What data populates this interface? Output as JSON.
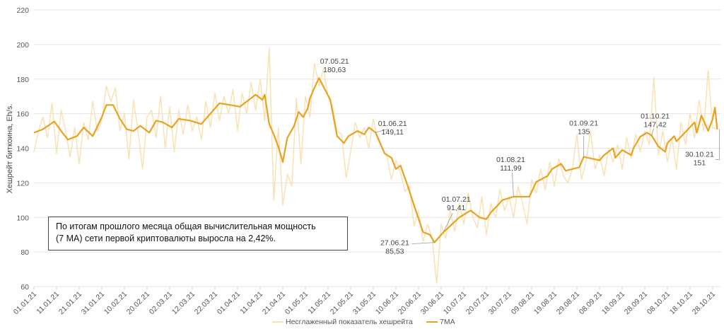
{
  "chart_data": {
    "type": "line",
    "ylabel": "Хешрейт биткоина, Eh/s.",
    "xlabel": "",
    "ylim": [
      60,
      220
    ],
    "yticks": [
      60,
      80,
      100,
      120,
      140,
      160,
      180,
      200,
      220
    ],
    "grid": true,
    "legend_position": "bottom",
    "x_start": "01.01.21",
    "xtick_labels": [
      "01.01.21",
      "11.01.21",
      "21.01.21",
      "31.01.21",
      "10.02.21",
      "20.02.21",
      "02.03.21",
      "12.03.21",
      "22.03.21",
      "01.04.21",
      "11.04.21",
      "21.04.21",
      "01.05.21",
      "11.05.21",
      "21.05.21",
      "31.05.21",
      "10.06.21",
      "20.06.21",
      "30.06.21",
      "10.07.21",
      "20.07.21",
      "30.07.21",
      "09.08.21",
      "19.08.21",
      "29.08.21",
      "08.09.21",
      "18.09.21",
      "28.09.21",
      "08.10.21",
      "18.10.21",
      "28.10.21"
    ],
    "series": [
      {
        "name": "Несглаженный показатель хешрейта",
        "color": "#f8e1b4",
        "day_step": 2,
        "values": [
          138,
          150,
          158,
          146,
          166,
          137,
          162,
          150,
          135,
          152,
          131,
          155,
          145,
          167,
          150,
          156,
          176,
          167,
          175,
          150,
          160,
          134,
          168,
          150,
          128,
          158,
          162,
          146,
          170,
          140,
          164,
          138,
          162,
          148,
          165,
          150,
          158,
          145,
          167,
          152,
          172,
          156,
          170,
          160,
          174,
          150,
          172,
          160,
          178,
          162,
          180,
          156,
          198,
          110,
          152,
          107,
          125,
          118,
          169,
          131,
          170,
          158,
          189,
          176,
          186,
          170,
          164,
          150,
          148,
          123,
          138,
          155,
          146,
          152,
          140,
          157,
          145,
          140,
          135,
          122,
          133,
          126,
          115,
          118,
          95,
          104,
          86,
          96,
          88,
          62,
          96,
          88,
          104,
          92,
          108,
          96,
          114,
          100,
          94,
          112,
          90,
          108,
          100,
          116,
          104,
          112,
          100,
          118,
          108,
          96,
          122,
          114,
          128,
          116,
          132,
          118,
          134,
          124,
          120,
          128,
          148,
          122,
          132,
          150,
          128,
          136,
          124,
          140,
          132,
          142,
          128,
          146,
          134,
          148,
          138,
          150,
          142,
          181,
          136,
          150,
          132,
          146,
          128,
          155,
          142,
          160,
          146,
          168,
          150,
          185,
          152,
          151
        ]
      },
      {
        "name": "7MA",
        "color": "#e9a21f",
        "points": [
          [
            0,
            149
          ],
          [
            4,
            151
          ],
          [
            9,
            155.5
          ],
          [
            12,
            150
          ],
          [
            15,
            145
          ],
          [
            19,
            147
          ],
          [
            22,
            152
          ],
          [
            26,
            147
          ],
          [
            30,
            158
          ],
          [
            32,
            165
          ],
          [
            35,
            165
          ],
          [
            38,
            157
          ],
          [
            41,
            151
          ],
          [
            44,
            150
          ],
          [
            47,
            153
          ],
          [
            51,
            149
          ],
          [
            54,
            156
          ],
          [
            57,
            155
          ],
          [
            61,
            152
          ],
          [
            64,
            157
          ],
          [
            69,
            156
          ],
          [
            74,
            154
          ],
          [
            78,
            160
          ],
          [
            82,
            166
          ],
          [
            87,
            165
          ],
          [
            91,
            164
          ],
          [
            95,
            168
          ],
          [
            98,
            171
          ],
          [
            101,
            168
          ],
          [
            102,
            171
          ],
          [
            104,
            154
          ],
          [
            106,
            148
          ],
          [
            108,
            141
          ],
          [
            110,
            132
          ],
          [
            112,
            146
          ],
          [
            115,
            153
          ],
          [
            117,
            161
          ],
          [
            119,
            158
          ],
          [
            121,
            163
          ],
          [
            122,
            169
          ],
          [
            124,
            175
          ],
          [
            126,
            180.63
          ],
          [
            131,
            168
          ],
          [
            134,
            147
          ],
          [
            137,
            143
          ],
          [
            139,
            147
          ],
          [
            143,
            150
          ],
          [
            146,
            148
          ],
          [
            148,
            152
          ],
          [
            151,
            149.11
          ],
          [
            155,
            137
          ],
          [
            158,
            134.5
          ],
          [
            160,
            128
          ],
          [
            162,
            130
          ],
          [
            165,
            119
          ],
          [
            168,
            107
          ],
          [
            172,
            91.5
          ],
          [
            175,
            90
          ],
          [
            177,
            85.53
          ],
          [
            181,
            91.41
          ],
          [
            188,
            100
          ],
          [
            193,
            104
          ],
          [
            197,
            100
          ],
          [
            200,
            99
          ],
          [
            202,
            103
          ],
          [
            205,
            107
          ],
          [
            207,
            110
          ],
          [
            212,
            111.99
          ],
          [
            219,
            112
          ],
          [
            222,
            120.5
          ],
          [
            227,
            124
          ],
          [
            229,
            128
          ],
          [
            233,
            131
          ],
          [
            235,
            127
          ],
          [
            241,
            129
          ],
          [
            243,
            135
          ],
          [
            250,
            133
          ],
          [
            252,
            136
          ],
          [
            256,
            140
          ],
          [
            257,
            134.5
          ],
          [
            260,
            139
          ],
          [
            264,
            136
          ],
          [
            265,
            140
          ],
          [
            268,
            146.7
          ],
          [
            271,
            149
          ],
          [
            273,
            147.42
          ],
          [
            276,
            141
          ],
          [
            279,
            138
          ],
          [
            280,
            143
          ],
          [
            283,
            147
          ],
          [
            284,
            144
          ],
          [
            289,
            150.8
          ],
          [
            292,
            155
          ],
          [
            293,
            149
          ],
          [
            295,
            159
          ],
          [
            298,
            150
          ],
          [
            300,
            157
          ],
          [
            301,
            163.5
          ],
          [
            302,
            151
          ]
        ]
      }
    ],
    "annotations": [
      {
        "day": 126,
        "value": 180.63,
        "date": "07.05.21",
        "label": "180,63"
      },
      {
        "day": 151,
        "value": 149.11,
        "date": "01.06.21",
        "label": "149,11"
      },
      {
        "day": 177,
        "value": 85.53,
        "date": "27.06.21",
        "label": "85,53"
      },
      {
        "day": 181,
        "value": 91.41,
        "date": "01.07.21",
        "label": "91,41"
      },
      {
        "day": 212,
        "value": 111.99,
        "date": "01.08.21",
        "label": "111,99"
      },
      {
        "day": 243,
        "value": 135,
        "date": "01.09.21",
        "label": "135"
      },
      {
        "day": 273,
        "value": 147.42,
        "date": "01.10.21",
        "label": "147,42"
      },
      {
        "day": 302,
        "value": 151,
        "date": "30.10.21",
        "label": "151"
      }
    ]
  },
  "note": {
    "line1": "По итогам прошлого месяца общая вычислительная мощность",
    "line2": "(7 MA) сети первой криптовалюты выросла на 2,42%."
  },
  "legend": {
    "raw": "Несглаженный показатель хешрейта",
    "ma": "7MA"
  }
}
